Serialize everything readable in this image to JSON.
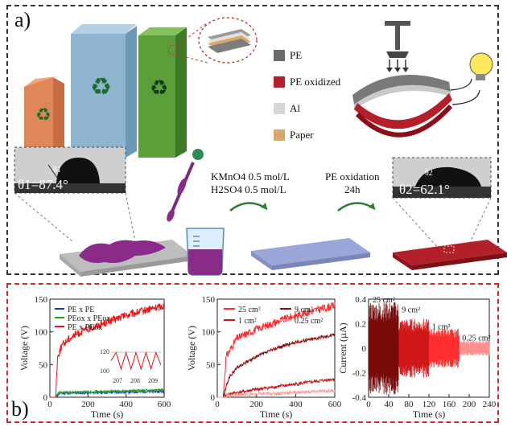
{
  "panel_a": {
    "label": "a)",
    "legend": [
      {
        "label": "PE",
        "color": "#6b6b6b"
      },
      {
        "label": "PE oxidized",
        "color": "#b3202a"
      },
      {
        "label": "Al",
        "color": "#d6d6d6"
      },
      {
        "label": "Paper",
        "color": "#d8a96a"
      }
    ],
    "angle1_sub": "θ1",
    "angle1": "θ1=87.4°",
    "angle2_sub": "θ2",
    "angle2": "θ2=62.1°",
    "reagent_line1": "KMnO4 0.5 mol/L",
    "reagent_line2": "H2SO4 0.5 mol/L",
    "step_line1": "PE oxidation",
    "step_line2": "24h",
    "colors": {
      "carton_orange": "#e0875a",
      "carton_blue": "#8fb4cf",
      "carton_green": "#5c9e3a",
      "purple": "#8a2b8a",
      "red": "#b3202a"
    }
  },
  "panel_b": {
    "label": "b)",
    "chart_data": [
      {
        "type": "line",
        "ylabel": "Voltage (V)",
        "xlabel": "Time (s)",
        "xlim": [
          0,
          600
        ],
        "ylim": [
          0,
          150
        ],
        "xticks": [
          0,
          200,
          400,
          600
        ],
        "yticks": [
          0,
          50,
          100,
          150
        ],
        "series": [
          {
            "name": "PE x PE",
            "color": "#2233cc",
            "x": [
              0,
              30,
              50,
              600
            ],
            "y": [
              0,
              0,
              6,
              9
            ]
          },
          {
            "name": "PEox x PEox",
            "color": "#22a022",
            "x": [
              0,
              30,
              50,
              600
            ],
            "y": [
              0,
              0,
              7,
              11
            ]
          },
          {
            "name": "PE x PEox",
            "color": "#ee1111",
            "x": [
              0,
              30,
              40,
              60,
              100,
              150,
              200,
              300,
              400,
              500,
              600
            ],
            "y": [
              0,
              0,
              60,
              78,
              90,
              98,
              104,
              115,
              125,
              133,
              140
            ]
          }
        ],
        "inset": {
          "x_ticks": [
            "207",
            "208",
            "209"
          ],
          "y_ticks": [
            "120",
            "100"
          ],
          "values": [
            112,
            120,
            104,
            120,
            104,
            120,
            104,
            120,
            104,
            120,
            108
          ]
        }
      },
      {
        "type": "line",
        "ylabel": "Voltage (V)",
        "xlabel": "Time (s)",
        "xlim": [
          0,
          600
        ],
        "ylim": [
          0,
          150
        ],
        "xticks": [
          0,
          200,
          400,
          600
        ],
        "yticks": [
          0,
          50,
          100,
          150
        ],
        "series": [
          {
            "name": "25 cm²",
            "color": "#ff2a2a",
            "x": [
              0,
              30,
              45,
              100,
              200,
              300,
              400,
              500,
              600
            ],
            "y": [
              0,
              0,
              62,
              90,
              104,
              115,
              125,
              133,
              140
            ]
          },
          {
            "name": "9 cm²",
            "color": "#8a0d0d",
            "x": [
              0,
              30,
              60,
              100,
              200,
              300,
              400,
              500,
              600
            ],
            "y": [
              0,
              0,
              30,
              45,
              62,
              75,
              84,
              90,
              96
            ]
          },
          {
            "name": "1 cm²",
            "color": "#c21a1a",
            "x": [
              0,
              30,
              60,
              200,
              400,
              600
            ],
            "y": [
              0,
              0,
              5,
              12,
              20,
              28
            ]
          },
          {
            "name": "0.25 cm²",
            "color": "#ff9a9a",
            "x": [
              0,
              30,
              60,
              300,
              600
            ],
            "y": [
              0,
              0,
              3,
              6,
              10
            ]
          }
        ]
      },
      {
        "type": "bar",
        "ylabel": "Current (µA)",
        "xlabel": "Time (s)",
        "xlim": [
          0,
          240
        ],
        "ylim": [
          -0.4,
          0.4
        ],
        "xticks": [
          0,
          40,
          80,
          120,
          160,
          200,
          240
        ],
        "yticks": [
          -0.4,
          -0.2,
          0.0,
          0.2,
          0.4
        ],
        "segments": [
          {
            "label": "25 cm²",
            "x0": 0,
            "x1": 60,
            "amp": 0.38,
            "color": "#7a0a0a"
          },
          {
            "label": "9 cm²",
            "x0": 60,
            "x1": 120,
            "amp": 0.24,
            "color": "#d01818"
          },
          {
            "label": "1 cm²",
            "x0": 120,
            "x1": 180,
            "amp": 0.16,
            "color": "#ff2e2e"
          },
          {
            "label": "0.25 cm²",
            "x0": 180,
            "x1": 240,
            "amp": 0.06,
            "color": "#ff8f8f"
          }
        ]
      }
    ]
  }
}
